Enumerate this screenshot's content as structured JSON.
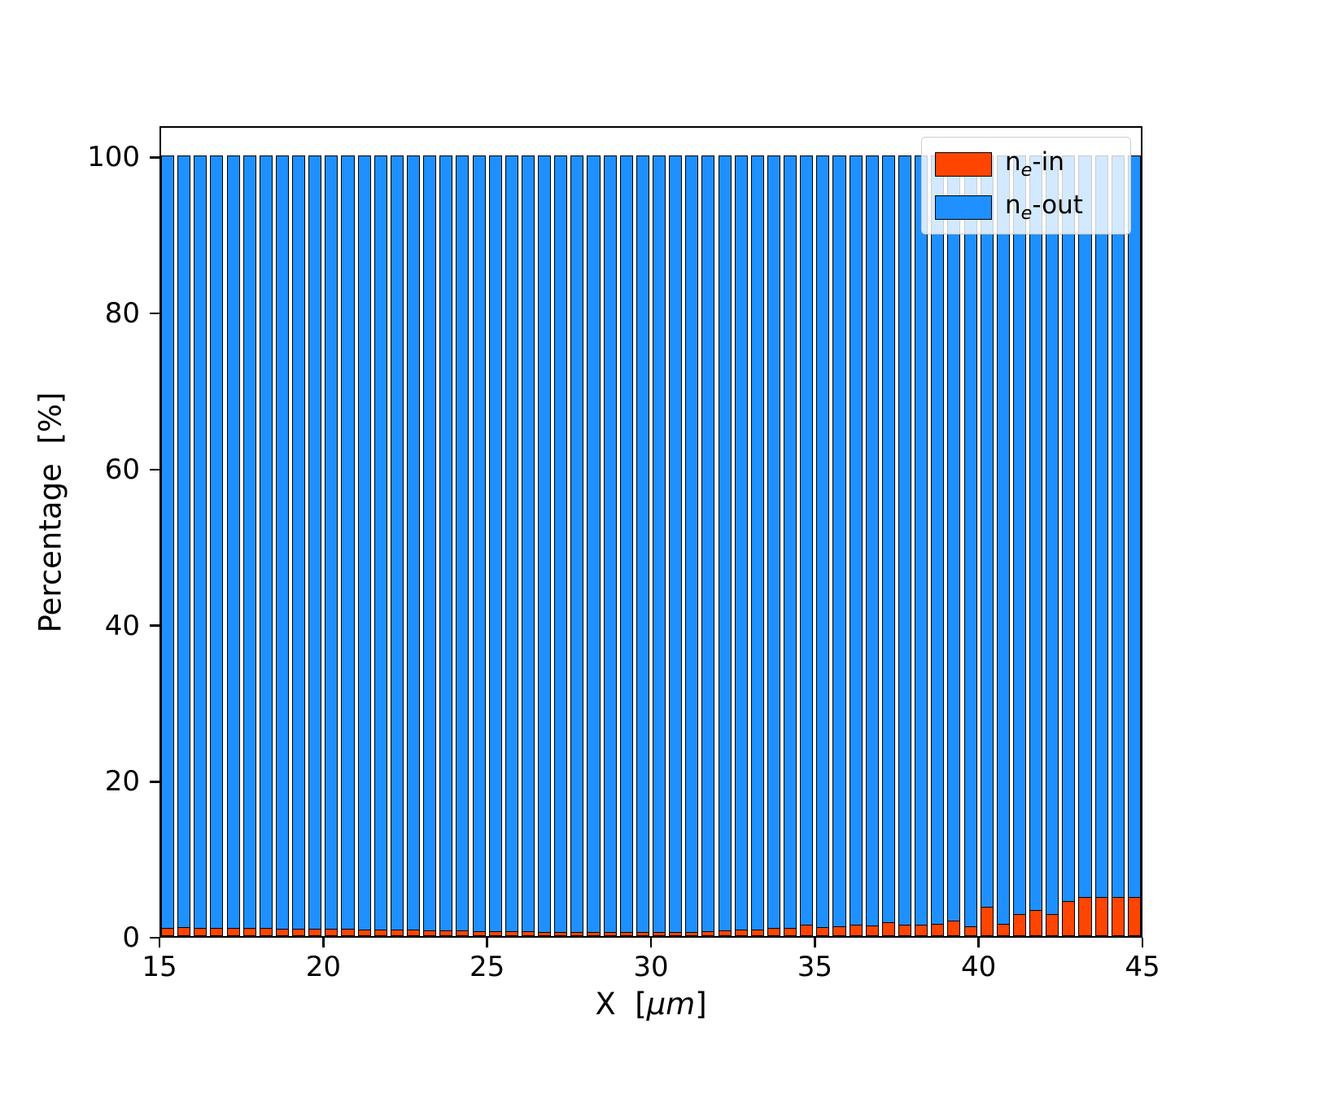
{
  "figure": {
    "background": "#ffffff"
  },
  "axes": {
    "ylabel": "Percentage  [%]",
    "xlabel_prefix": "X  [",
    "xlabel_italic": "μm",
    "xlabel_suffix": "]"
  },
  "legend": {
    "items": [
      {
        "prefix": "n",
        "sub": "e",
        "suffix": "-in",
        "color": "#FF4500"
      },
      {
        "prefix": "n",
        "sub": "e",
        "suffix": "-out",
        "color": "#1E90FF"
      }
    ]
  },
  "chart_data": {
    "type": "bar",
    "stacked": true,
    "title": "",
    "xlabel": "X [μm]",
    "ylabel": "Percentage [%]",
    "xlim": [
      15,
      45
    ],
    "ylim": [
      0,
      104
    ],
    "xticks": [
      15,
      20,
      25,
      30,
      35,
      40,
      45
    ],
    "yticks": [
      0,
      20,
      40,
      60,
      80,
      100
    ],
    "bar_width": 0.4,
    "bar_edge_color": "#000000",
    "legend_position": "upper right",
    "grid": false,
    "x": [
      15.0,
      15.5,
      16.0,
      16.5,
      17.0,
      17.5,
      18.0,
      18.5,
      19.0,
      19.5,
      20.0,
      20.5,
      21.0,
      21.5,
      22.0,
      22.5,
      23.0,
      23.5,
      24.0,
      24.5,
      25.0,
      25.5,
      26.0,
      26.5,
      27.0,
      27.5,
      28.0,
      28.5,
      29.0,
      29.5,
      30.0,
      30.5,
      31.0,
      31.5,
      32.0,
      32.5,
      33.0,
      33.5,
      34.0,
      34.5,
      35.0,
      35.5,
      36.0,
      36.5,
      37.0,
      37.5,
      38.0,
      38.5,
      39.0,
      39.5,
      40.0,
      40.5,
      41.0,
      41.5,
      42.0,
      42.5,
      43.0,
      43.5,
      44.0,
      44.5
    ],
    "series": [
      {
        "name": "n_e-in",
        "color": "#FF4500",
        "values": [
          1.0,
          1.1,
          1.0,
          1.0,
          1.0,
          1.0,
          1.0,
          0.9,
          0.9,
          0.9,
          0.9,
          0.9,
          0.8,
          0.8,
          0.8,
          0.8,
          0.7,
          0.7,
          0.7,
          0.6,
          0.6,
          0.6,
          0.6,
          0.5,
          0.5,
          0.5,
          0.5,
          0.5,
          0.5,
          0.5,
          0.5,
          0.5,
          0.5,
          0.6,
          0.7,
          0.8,
          0.8,
          1.0,
          1.0,
          1.5,
          1.2,
          1.3,
          1.5,
          1.4,
          1.8,
          1.5,
          1.5,
          1.6,
          2.0,
          1.3,
          3.8,
          1.6,
          2.8,
          3.3,
          2.8,
          4.5,
          5.0,
          5.0,
          5.0,
          5.0
        ]
      },
      {
        "name": "n_e-out",
        "color": "#1E90FF",
        "values": [
          99.0,
          98.9,
          99.0,
          99.0,
          99.0,
          99.0,
          99.0,
          99.1,
          99.1,
          99.1,
          99.1,
          99.1,
          99.2,
          99.2,
          99.2,
          99.2,
          99.3,
          99.3,
          99.3,
          99.4,
          99.4,
          99.4,
          99.4,
          99.5,
          99.5,
          99.5,
          99.5,
          99.5,
          99.5,
          99.5,
          99.5,
          99.5,
          99.5,
          99.4,
          99.3,
          99.2,
          99.2,
          99.0,
          99.0,
          98.5,
          98.8,
          98.7,
          98.5,
          98.6,
          98.2,
          98.5,
          98.5,
          98.4,
          98.0,
          98.7,
          96.2,
          98.4,
          97.2,
          96.7,
          97.2,
          95.5,
          95.0,
          95.0,
          95.0,
          95.0
        ]
      }
    ]
  }
}
